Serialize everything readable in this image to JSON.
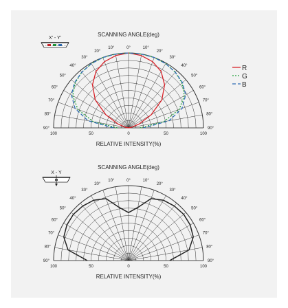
{
  "chart_data": [
    {
      "type": "polar",
      "title": "SCANNING ANGLE(deg)",
      "xlabel": "RELATIVE INTENSITY(%)",
      "axis_tag": "X' - Y'",
      "angle_ticks": [
        90,
        80,
        70,
        60,
        50,
        40,
        30,
        20,
        10,
        0
      ],
      "angle_tick_labels": [
        "90°",
        "80°",
        "70°",
        "60°",
        "50°",
        "40°",
        "30°",
        "20°",
        "10°",
        "0°"
      ],
      "radial_tick_labels": [
        "100",
        "50",
        "0",
        "50",
        "100"
      ],
      "rlim": [
        0,
        100
      ],
      "legend": "right",
      "grid": true,
      "angles": [
        0,
        10,
        20,
        30,
        40,
        50,
        60,
        70,
        80,
        90
      ],
      "series": [
        {
          "name": "R",
          "color": "#d8232a",
          "dash": "solid",
          "values": [
            100,
            98,
            94,
            87,
            75,
            58,
            35,
            15,
            4,
            0
          ]
        },
        {
          "name": "G",
          "color": "#1f9e3a",
          "dash": "dotted",
          "values": [
            100,
            100,
            100,
            99,
            97,
            93,
            86,
            72,
            48,
            15
          ]
        },
        {
          "name": "B",
          "color": "#2e6db4",
          "dash": "dashed",
          "values": [
            100,
            100,
            100,
            99,
            97,
            94,
            88,
            76,
            55,
            20
          ]
        }
      ]
    },
    {
      "type": "polar",
      "title": "SCANNING ANGLE(deg)",
      "xlabel": "RELATIVE INTENSITY(%)",
      "axis_tag": "X - Y",
      "angle_ticks": [
        90,
        80,
        70,
        60,
        50,
        40,
        30,
        20,
        10,
        0
      ],
      "angle_tick_labels": [
        "90°",
        "80°",
        "70°",
        "60°",
        "50°",
        "40°",
        "30°",
        "20°",
        "10°",
        "0°"
      ],
      "radial_tick_labels": [
        "100",
        "50",
        "0",
        "50",
        "100"
      ],
      "rlim": [
        0,
        100
      ],
      "grid": true,
      "angles": [
        0,
        10,
        20,
        30,
        40,
        50,
        60,
        70,
        80,
        90
      ],
      "series": [
        {
          "color": "#222222",
          "dash": "solid",
          "values": [
            64,
            72,
            88,
            93,
            95,
            96,
            95,
            92,
            82,
            55
          ]
        }
      ]
    }
  ]
}
